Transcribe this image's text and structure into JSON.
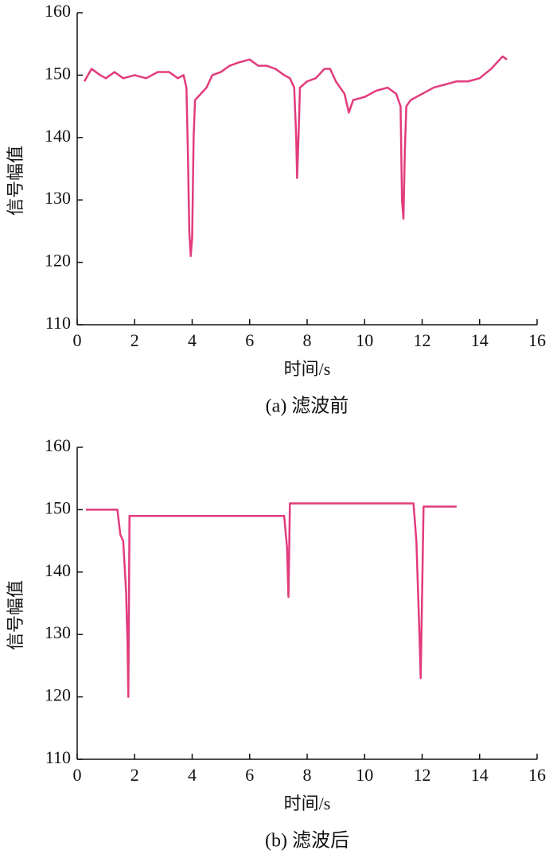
{
  "chart_data": [
    {
      "type": "line",
      "caption": "(a)  滤波前",
      "xlabel": "时间/s",
      "ylabel": "信号幅值",
      "color": "#e23b7c",
      "xlim": [
        0,
        16
      ],
      "xticks": [
        0,
        2,
        4,
        6,
        8,
        10,
        12,
        14,
        16
      ],
      "ylim": [
        110,
        160
      ],
      "yticks": [
        110,
        120,
        130,
        140,
        150,
        160
      ],
      "x": [
        0.25,
        0.5,
        0.8,
        1,
        1.3,
        1.6,
        2,
        2.4,
        2.8,
        3.2,
        3.5,
        3.7,
        3.8,
        3.85,
        3.9,
        3.95,
        4.0,
        4.05,
        4.1,
        4.3,
        4.5,
        4.7,
        5.0,
        5.3,
        5.6,
        6.0,
        6.3,
        6.6,
        6.9,
        7.2,
        7.4,
        7.55,
        7.62,
        7.65,
        7.7,
        7.75,
        8.0,
        8.3,
        8.6,
        8.8,
        9.0,
        9.3,
        9.45,
        9.6,
        10.0,
        10.4,
        10.8,
        11.1,
        11.25,
        11.3,
        11.35,
        11.4,
        11.45,
        11.6,
        12.0,
        12.4,
        12.8,
        13.2,
        13.6,
        14.0,
        14.4,
        14.7,
        14.8,
        14.95
      ],
      "values": [
        149,
        151,
        150,
        149.5,
        150.5,
        149.5,
        150,
        149.5,
        150.5,
        150.5,
        149.5,
        150,
        148,
        138,
        125,
        121,
        124,
        140,
        146,
        147,
        148,
        150,
        150.5,
        151.5,
        152,
        152.5,
        151.5,
        151.5,
        151,
        150,
        149.5,
        148,
        140,
        133.5,
        140,
        148,
        149,
        149.5,
        151,
        151,
        149,
        147,
        144,
        146,
        146.5,
        147.5,
        148,
        147,
        145,
        130,
        127,
        138,
        145,
        146,
        147,
        148,
        148.5,
        149,
        149,
        149.5,
        151,
        152.5,
        153,
        152.5
      ]
    },
    {
      "type": "line",
      "caption": "(b)  滤波后",
      "xlabel": "时间/s",
      "ylabel": "信号幅值",
      "color": "#e23b7c",
      "xlim": [
        0,
        16
      ],
      "xticks": [
        0,
        2,
        4,
        6,
        8,
        10,
        12,
        14,
        16
      ],
      "ylim": [
        110,
        160
      ],
      "yticks": [
        110,
        120,
        130,
        140,
        150,
        160
      ],
      "x": [
        0.3,
        1.4,
        1.5,
        1.6,
        1.7,
        1.75,
        1.78,
        1.82,
        2,
        7.2,
        7.3,
        7.35,
        7.4,
        8,
        11.7,
        11.8,
        11.9,
        11.95,
        12.05,
        12.5,
        13.2
      ],
      "values": [
        150,
        150,
        146,
        145,
        137,
        129,
        120,
        149,
        149,
        149,
        144,
        136,
        151,
        151,
        151,
        145,
        131,
        123,
        150.5,
        150.5,
        150.5
      ]
    }
  ]
}
